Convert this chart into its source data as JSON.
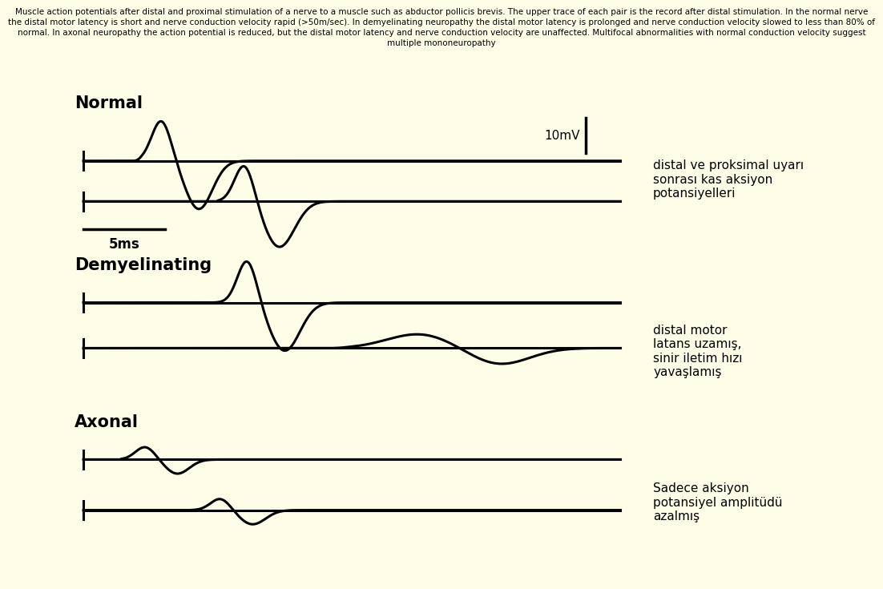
{
  "title_line1": "Muscle action potentials after distal and proximal stimulation of a nerve to a muscle such as abductor pollicis brevis. The upper trace of each pair is the record after distal stimulation. In the normal nerve",
  "title_line2": "the distal motor latency is short and nerve conduction velocity rapid (>50m/sec). In demyelinating neuropathy the distal motor latency is prolonged and nerve conduction velocity slowed to less than 80% of",
  "title_line3": "normal. In axonal neuropathy the action potential is reduced, but the distal motor latency and nerve conduction velocity are unaffected. Multifocal abnormalities with normal conduction velocity suggest",
  "title_line4": "multiple mononeuropathy",
  "bg_outer": "#fefee8",
  "bg_inner": "#b3edf5",
  "label_normal": "Normal",
  "label_demyelinating": "Demyelinating",
  "label_axonal": "Axonal",
  "label_10mv": "10mV",
  "label_5ms": "5ms",
  "annotation1": "distal ve proksimal uyarı\nsonrası kas aksiyon\npotansiyelleri",
  "annotation2": "distal motor\nlatans uzamış,\nsinir iletim hızı\nyavaşlamış",
  "annotation3": "Sadece aksiyon\npotansiyel amplitüdü\nazalmış",
  "lw": 2.2
}
